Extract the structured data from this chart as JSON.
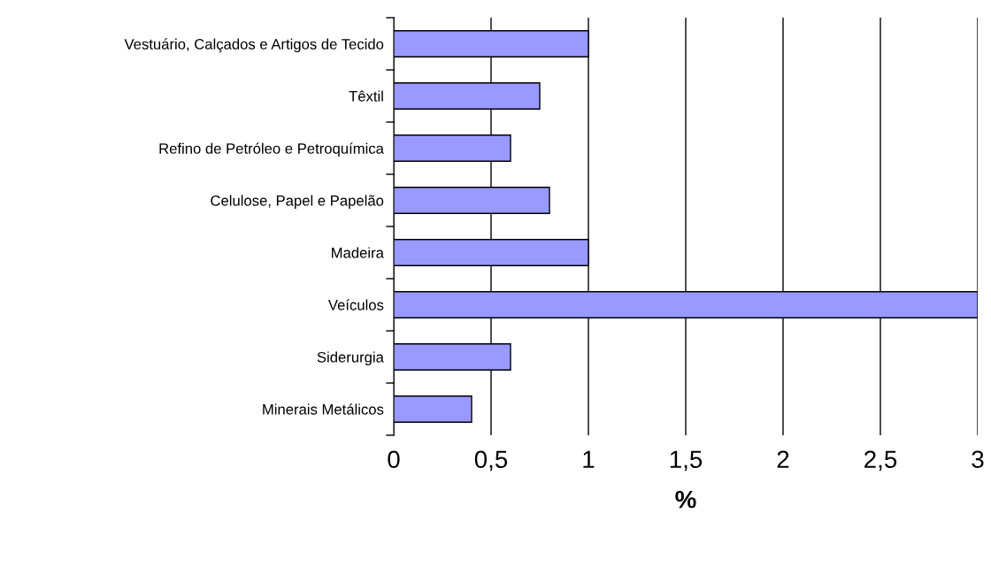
{
  "chart_data": {
    "type": "bar",
    "orientation": "horizontal",
    "xlabel": "%",
    "categories": [
      "Vestuário, Calçados e Artigos de Tecido",
      "Têxtil",
      "Refino de Petróleo e Petroquímica",
      "Celulose, Papel e Papelão",
      "Madeira",
      "Veículos",
      "Siderurgia",
      "Minerais Metálicos"
    ],
    "values": [
      1,
      0.75,
      0.6,
      0.8,
      1,
      3,
      0.6,
      0.4
    ],
    "color": "#9999ff",
    "xlim": [
      0,
      3
    ],
    "xticks": [
      {
        "value": 0,
        "label": "0"
      },
      {
        "value": 0.5,
        "label": "0,5"
      },
      {
        "value": 1,
        "label": "1"
      },
      {
        "value": 1.5,
        "label": "1,5"
      },
      {
        "value": 2,
        "label": "2"
      },
      {
        "value": 2.5,
        "label": "2,5"
      },
      {
        "value": 3,
        "label": "3"
      }
    ],
    "grid": "x"
  }
}
